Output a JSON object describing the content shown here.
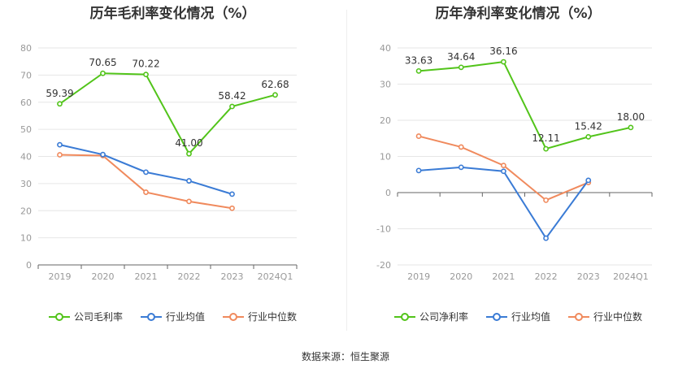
{
  "source_label": "数据来源：恒生聚源",
  "chart_data": [
    {
      "type": "line",
      "title": "历年毛利率变化情况（%）",
      "categories": [
        "2019",
        "2020",
        "2021",
        "2022",
        "2023",
        "2024Q1"
      ],
      "yticks": [
        0,
        10,
        20,
        30,
        40,
        50,
        60,
        70,
        80
      ],
      "ylim": [
        0,
        80
      ],
      "grid": true,
      "legend_position": "bottom",
      "series": [
        {
          "name": "公司毛利率",
          "color": "#52c41a",
          "values": [
            59.39,
            70.65,
            70.22,
            41.0,
            58.42,
            62.68
          ],
          "labels": [
            "59.39",
            "70.65",
            "70.22",
            "41.00",
            "58.42",
            "62.68"
          ]
        },
        {
          "name": "行业均值",
          "color": "#3a7bd5",
          "values": [
            44.3,
            40.7,
            34.2,
            31.0,
            26.1,
            null
          ]
        },
        {
          "name": "行业中位数",
          "color": "#f08a5d",
          "values": [
            40.6,
            40.3,
            26.8,
            23.4,
            20.9,
            null
          ]
        }
      ]
    },
    {
      "type": "line",
      "title": "历年净利率变化情况（%）",
      "categories": [
        "2019",
        "2020",
        "2021",
        "2022",
        "2023",
        "2024Q1"
      ],
      "yticks": [
        -20,
        -10,
        0,
        10,
        20,
        30,
        40
      ],
      "ylim": [
        -20,
        40
      ],
      "grid": true,
      "legend_position": "bottom",
      "series": [
        {
          "name": "公司净利率",
          "color": "#52c41a",
          "values": [
            33.63,
            34.64,
            36.16,
            12.11,
            15.42,
            18.0
          ],
          "labels": [
            "33.63",
            "34.64",
            "36.16",
            "12.11",
            "15.42",
            "18.00"
          ]
        },
        {
          "name": "行业均值",
          "color": "#3a7bd5",
          "values": [
            6.1,
            7.0,
            5.9,
            -12.6,
            3.4,
            null
          ]
        },
        {
          "name": "行业中位数",
          "color": "#f08a5d",
          "values": [
            15.6,
            12.6,
            7.5,
            -2.1,
            2.8,
            null
          ]
        }
      ]
    }
  ]
}
